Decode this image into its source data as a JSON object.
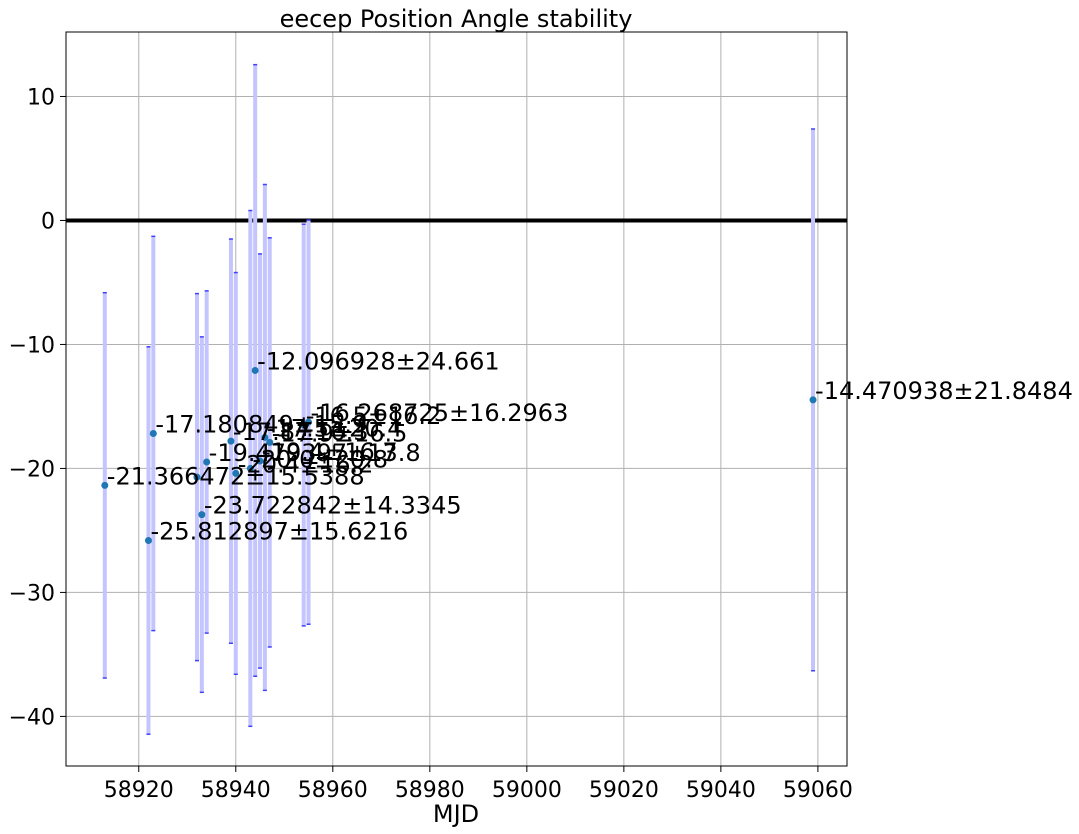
{
  "chart_data": {
    "type": "scatter",
    "title": "eecep Position Angle stability",
    "xlabel": "MJD",
    "ylabel": "",
    "xlim": [
      58905,
      59066
    ],
    "ylim": [
      -44,
      15.2
    ],
    "xticks": [
      58920,
      58940,
      58960,
      58980,
      59000,
      59020,
      59040,
      59060
    ],
    "yticks": [
      10,
      0,
      -10,
      -20,
      -30,
      -40
    ],
    "ytick_labels": [
      "10",
      "0",
      "−10",
      "−20",
      "−30",
      "−40"
    ],
    "grid": true,
    "reference_line_y": 0,
    "colors": {
      "point": "#1f77b4",
      "errorbar": "#c4c4ff",
      "errorcap": "#4040ff",
      "reference_line": "#000000"
    },
    "points": [
      {
        "x": 58913,
        "y": -21.366472,
        "err": 15.5388,
        "label": "-21.366472±15.5388"
      },
      {
        "x": 58922,
        "y": -25.812897,
        "err": 15.6216,
        "label": "-25.812897±15.6216"
      },
      {
        "x": 58923,
        "y": -17.180849,
        "err": 15.9,
        "label": "-17.180849±15.9"
      },
      {
        "x": 58932,
        "y": -20.7,
        "err": 14.8,
        "label": ""
      },
      {
        "x": 58933,
        "y": -23.722842,
        "err": 14.3345,
        "label": "-23.722842±14.3345"
      },
      {
        "x": 58934,
        "y": -19.479397,
        "err": 13.8,
        "label": "-19.479397±13.8"
      },
      {
        "x": 58939,
        "y": -17.8,
        "err": 16.3,
        "label": "-17.8±16.3"
      },
      {
        "x": 58940,
        "y": -20.4,
        "err": 16.2,
        "label": "-20.4±16.2"
      },
      {
        "x": 58943,
        "y": -20.0,
        "err": 20.8,
        "label": "-20.0±20.8"
      },
      {
        "x": 58944,
        "y": -12.096928,
        "err": 24.661,
        "label": "-12.096928±24.661"
      },
      {
        "x": 58945,
        "y": -19.4,
        "err": 16.7,
        "label": "-19.4±16.7"
      },
      {
        "x": 58946,
        "y": -17.5,
        "err": 20.4,
        "label": "-17.5±20.4"
      },
      {
        "x": 58947,
        "y": -17.9,
        "err": 16.5,
        "label": "-17.9±16.5"
      },
      {
        "x": 58954,
        "y": -16.5,
        "err": 16.2,
        "label": "-16.5±16.2"
      },
      {
        "x": 58955,
        "y": -16.268725,
        "err": 16.2963,
        "label": "-16.268725±16.2963"
      },
      {
        "x": 59059,
        "y": -14.470938,
        "err": 21.8484,
        "label": "-14.470938±21.8484"
      }
    ]
  }
}
